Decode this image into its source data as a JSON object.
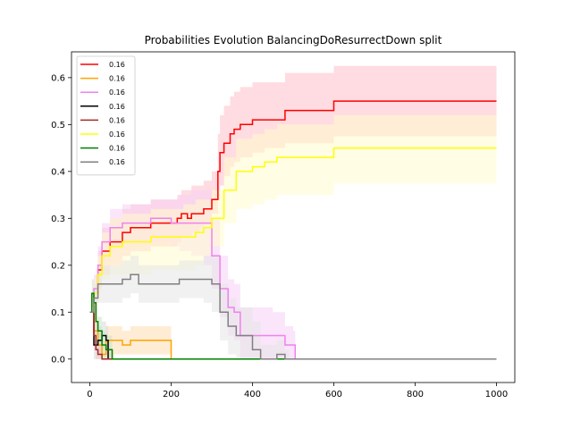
{
  "chart_data": {
    "type": "line",
    "title": "Probabilities Evolution BalancingDoResurrectDown split",
    "xlabel": "",
    "ylabel": "",
    "xlim": [
      -45,
      1045
    ],
    "ylim": [
      -0.05,
      0.655
    ],
    "xticks": [
      0,
      200,
      400,
      600,
      800,
      1000
    ],
    "yticks": [
      0.0,
      0.1,
      0.2,
      0.3,
      0.4,
      0.5,
      0.6
    ],
    "xtick_labels": [
      "0",
      "200",
      "400",
      "600",
      "800",
      "1000"
    ],
    "ytick_labels": [
      "0.0",
      "0.1",
      "0.2",
      "0.3",
      "0.4",
      "0.5",
      "0.6"
    ],
    "grid": false,
    "legend_position": "top-left",
    "series": [
      {
        "name": "0.16",
        "color": "#ff0000",
        "band_color": "#ffc0c8",
        "x": [
          0,
          10,
          20,
          30,
          50,
          80,
          100,
          150,
          200,
          215,
          225,
          240,
          250,
          270,
          280,
          300,
          315,
          320,
          330,
          345,
          355,
          370,
          400,
          430,
          480,
          500,
          600,
          660,
          665,
          700,
          800,
          1000
        ],
        "y": [
          0.1,
          0.14,
          0.19,
          0.23,
          0.25,
          0.27,
          0.28,
          0.29,
          0.29,
          0.3,
          0.31,
          0.3,
          0.31,
          0.31,
          0.32,
          0.34,
          0.4,
          0.44,
          0.46,
          0.48,
          0.49,
          0.5,
          0.51,
          0.51,
          0.53,
          0.53,
          0.55,
          0.55,
          0.55,
          0.55,
          0.55,
          0.55
        ],
        "lower": [
          0.1,
          0.12,
          0.15,
          0.18,
          0.2,
          0.22,
          0.23,
          0.24,
          0.24,
          0.25,
          0.26,
          0.26,
          0.27,
          0.28,
          0.29,
          0.31,
          0.34,
          0.37,
          0.39,
          0.41,
          0.42,
          0.43,
          0.44,
          0.45,
          0.46,
          0.46,
          0.475,
          0.475,
          0.475,
          0.475,
          0.475,
          0.475
        ],
        "upper": [
          0.1,
          0.17,
          0.23,
          0.28,
          0.3,
          0.32,
          0.33,
          0.34,
          0.34,
          0.35,
          0.36,
          0.36,
          0.37,
          0.37,
          0.38,
          0.4,
          0.48,
          0.52,
          0.54,
          0.56,
          0.57,
          0.58,
          0.59,
          0.59,
          0.61,
          0.61,
          0.625,
          0.625,
          0.625,
          0.625,
          0.625,
          0.625
        ]
      },
      {
        "name": "0.16",
        "color": "#ffa500",
        "band_color": "#ffdcb0",
        "x": [
          0,
          10,
          20,
          30,
          40,
          60,
          80,
          100,
          120,
          150,
          190,
          200,
          210,
          250,
          1000
        ],
        "y": [
          0.1,
          0.06,
          0.03,
          0.01,
          0.04,
          0.04,
          0.03,
          0.04,
          0.04,
          0.04,
          0.04,
          0.0,
          0.0,
          0.0,
          0.0
        ],
        "lower": [
          0.1,
          0.03,
          0.0,
          0.0,
          0.0,
          0.01,
          0.01,
          0.01,
          0.01,
          0.01,
          0.01,
          0.0,
          0.0,
          0.0,
          0.0
        ],
        "upper": [
          0.1,
          0.09,
          0.06,
          0.04,
          0.07,
          0.07,
          0.06,
          0.07,
          0.07,
          0.07,
          0.07,
          0.0,
          0.0,
          0.0,
          0.0
        ]
      },
      {
        "name": "0.16",
        "color": "#ee82ee",
        "band_color": "#f5d0f5",
        "x": [
          0,
          10,
          20,
          30,
          50,
          80,
          100,
          150,
          200,
          220,
          250,
          280,
          300,
          320,
          340,
          355,
          370,
          400,
          430,
          450,
          480,
          500,
          505,
          1000
        ],
        "y": [
          0.1,
          0.15,
          0.2,
          0.25,
          0.28,
          0.29,
          0.29,
          0.3,
          0.29,
          0.29,
          0.29,
          0.29,
          0.22,
          0.15,
          0.11,
          0.1,
          0.05,
          0.05,
          0.05,
          0.05,
          0.03,
          0.03,
          0.0,
          0.0
        ],
        "lower": [
          0.1,
          0.12,
          0.16,
          0.21,
          0.24,
          0.25,
          0.25,
          0.25,
          0.24,
          0.23,
          0.22,
          0.2,
          0.15,
          0.09,
          0.05,
          0.04,
          0.0,
          0.0,
          0.0,
          0.0,
          0.0,
          0.0,
          0.0,
          0.0
        ],
        "upper": [
          0.1,
          0.18,
          0.24,
          0.29,
          0.32,
          0.33,
          0.33,
          0.34,
          0.34,
          0.35,
          0.36,
          0.36,
          0.3,
          0.22,
          0.17,
          0.16,
          0.11,
          0.11,
          0.11,
          0.1,
          0.07,
          0.06,
          0.0,
          0.0
        ],
        "band_end": 505
      },
      {
        "name": "0.16",
        "color": "#000000",
        "band_color": "#d8d8d8",
        "x": [
          0,
          10,
          20,
          30,
          40,
          45,
          1000
        ],
        "y": [
          0.1,
          0.03,
          0.04,
          0.05,
          0.04,
          0.0,
          0.0
        ],
        "lower": [
          0.1,
          0.0,
          0.01,
          0.02,
          0.01,
          0.0,
          0.0
        ],
        "upper": [
          0.1,
          0.06,
          0.07,
          0.08,
          0.07,
          0.0,
          0.0
        ]
      },
      {
        "name": "0.16",
        "color": "#a52a2a",
        "band_color": "#e8c8c8",
        "x": [
          0,
          10,
          15,
          20,
          30,
          1000
        ],
        "y": [
          0.1,
          0.05,
          0.02,
          0.01,
          0.0,
          0.0
        ],
        "lower": [
          0.1,
          0.02,
          0.0,
          0.0,
          0.0,
          0.0
        ],
        "upper": [
          0.1,
          0.08,
          0.05,
          0.03,
          0.0,
          0.0
        ]
      },
      {
        "name": "0.16",
        "color": "#ffff00",
        "band_color": "#fffccc",
        "x": [
          0,
          10,
          20,
          30,
          50,
          80,
          100,
          150,
          200,
          230,
          260,
          280,
          300,
          330,
          360,
          400,
          430,
          460,
          500,
          600,
          660,
          665,
          1000
        ],
        "y": [
          0.1,
          0.14,
          0.18,
          0.22,
          0.24,
          0.25,
          0.25,
          0.26,
          0.26,
          0.26,
          0.27,
          0.28,
          0.3,
          0.36,
          0.4,
          0.41,
          0.42,
          0.43,
          0.43,
          0.45,
          0.45,
          0.45,
          0.45
        ],
        "lower": [
          0.1,
          0.11,
          0.14,
          0.17,
          0.18,
          0.18,
          0.18,
          0.19,
          0.19,
          0.19,
          0.2,
          0.22,
          0.24,
          0.29,
          0.32,
          0.33,
          0.34,
          0.35,
          0.35,
          0.375,
          0.375,
          0.375,
          0.375
        ],
        "upper": [
          0.1,
          0.17,
          0.22,
          0.27,
          0.3,
          0.31,
          0.31,
          0.32,
          0.32,
          0.33,
          0.34,
          0.34,
          0.36,
          0.43,
          0.47,
          0.48,
          0.49,
          0.5,
          0.5,
          0.52,
          0.52,
          0.52,
          0.52
        ]
      },
      {
        "name": "0.16",
        "color": "#008000",
        "band_color": "#c8e6c8",
        "x": [
          0,
          5,
          10,
          15,
          20,
          30,
          40,
          50,
          55,
          1000
        ],
        "y": [
          0.1,
          0.14,
          0.12,
          0.08,
          0.06,
          0.03,
          0.02,
          0.02,
          0.0,
          0.0
        ],
        "lower": [
          0.1,
          0.11,
          0.09,
          0.05,
          0.03,
          0.0,
          0.0,
          0.0,
          0.0,
          0.0
        ],
        "upper": [
          0.1,
          0.17,
          0.15,
          0.11,
          0.09,
          0.06,
          0.05,
          0.05,
          0.0,
          0.0
        ]
      },
      {
        "name": "0.16",
        "color": "#808080",
        "band_color": "#e6e6e6",
        "x": [
          0,
          10,
          20,
          40,
          60,
          80,
          100,
          120,
          150,
          200,
          220,
          250,
          280,
          300,
          320,
          340,
          360,
          400,
          420,
          440,
          460,
          480,
          490,
          1000
        ],
        "y": [
          0.1,
          0.13,
          0.16,
          0.16,
          0.16,
          0.17,
          0.18,
          0.16,
          0.16,
          0.16,
          0.17,
          0.17,
          0.17,
          0.16,
          0.1,
          0.07,
          0.05,
          0.02,
          0.0,
          0.0,
          0.01,
          0.0,
          0.0,
          0.0
        ],
        "lower": [
          0.1,
          0.1,
          0.12,
          0.12,
          0.12,
          0.13,
          0.14,
          0.12,
          0.12,
          0.12,
          0.13,
          0.13,
          0.12,
          0.1,
          0.04,
          0.01,
          0.0,
          0.0,
          0.0,
          0.0,
          0.0,
          0.0,
          0.0,
          0.0
        ],
        "upper": [
          0.1,
          0.16,
          0.2,
          0.2,
          0.2,
          0.21,
          0.22,
          0.2,
          0.2,
          0.2,
          0.21,
          0.21,
          0.22,
          0.22,
          0.16,
          0.13,
          0.11,
          0.08,
          0.03,
          0.03,
          0.04,
          0.02,
          0.0,
          0.0
        ]
      }
    ]
  }
}
